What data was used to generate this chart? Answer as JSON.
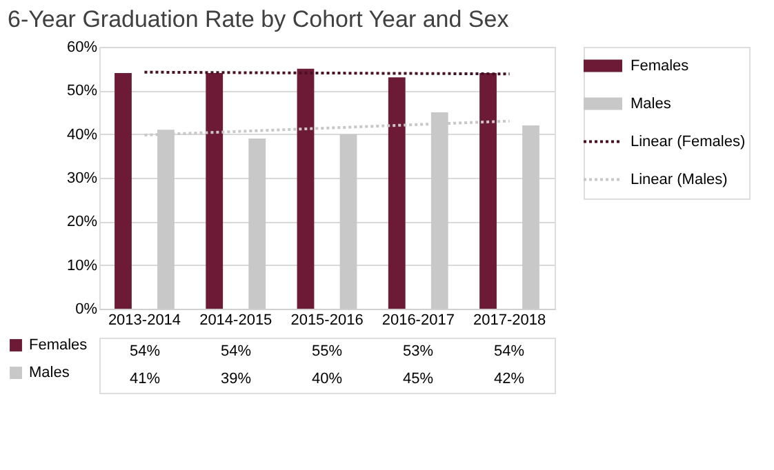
{
  "chart_data": {
    "type": "bar",
    "title": "6-Year Graduation Rate by Cohort Year and Sex",
    "categories": [
      "2013-2014",
      "2014-2015",
      "2015-2016",
      "2016-2017",
      "2017-2018"
    ],
    "series": [
      {
        "name": "Females",
        "color": "#6d1a36",
        "values": [
          54,
          54,
          55,
          53,
          54
        ],
        "value_labels": [
          "54%",
          "54%",
          "55%",
          "53%",
          "54%"
        ]
      },
      {
        "name": "Males",
        "color": "#c8c8c8",
        "values": [
          41,
          39,
          40,
          45,
          42
        ],
        "value_labels": [
          "41%",
          "39%",
          "40%",
          "45%",
          "42%"
        ]
      },
      {
        "name": "Linear (Females)",
        "type": "line",
        "line_style": "dotted",
        "color": "#4a0f22",
        "values": [
          54.2,
          54.1,
          54.0,
          53.9,
          53.8
        ]
      },
      {
        "name": "Linear (Males)",
        "type": "line",
        "line_style": "dotted",
        "color": "#c8c8c8",
        "values": [
          39.8,
          40.6,
          41.4,
          42.2,
          43.0
        ]
      }
    ],
    "ylim": [
      0,
      60
    ],
    "yticks": [
      {
        "value": 0,
        "label": "0%"
      },
      {
        "value": 10,
        "label": "10%"
      },
      {
        "value": 20,
        "label": "20%"
      },
      {
        "value": 30,
        "label": "30%"
      },
      {
        "value": 40,
        "label": "40%"
      },
      {
        "value": 50,
        "label": "50%"
      },
      {
        "value": 60,
        "label": "60%"
      }
    ],
    "grid": "y",
    "legend": "right"
  }
}
